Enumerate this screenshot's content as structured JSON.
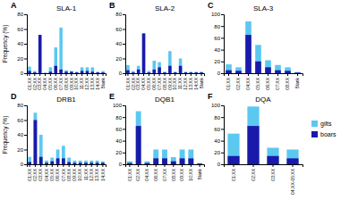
{
  "chart_data": [
    {
      "type": "bar",
      "title": "SLA-1",
      "annotations": [
        "A"
      ],
      "y_label": "Frequency (%)",
      "categories": [
        "01:XX",
        "02:XX",
        "03:XX",
        "04:XX",
        "05:XX",
        "06:XX",
        "07:XX",
        "08:XX",
        "09:XX",
        "10:XX",
        "11:XX",
        "12:XX",
        "13:XX",
        "14:XX",
        "Blank"
      ],
      "series": [
        {
          "name": "gilts",
          "color": "#5bc8f0",
          "values": [
            9,
            3,
            52,
            1,
            8,
            35,
            62,
            4,
            3,
            2,
            8,
            8,
            8,
            2,
            3
          ]
        },
        {
          "name": "boars",
          "color": "#1a1aaa",
          "values": [
            3,
            1,
            52,
            0,
            2,
            10,
            5,
            2,
            2,
            1,
            3,
            3,
            2,
            1,
            1
          ]
        }
      ],
      "stacked": false,
      "grid": false,
      "ylim": [
        0,
        80
      ],
      "yticks": [
        0,
        20,
        40,
        60,
        80
      ]
    },
    {
      "type": "bar",
      "title": "SLA-2",
      "annotations": [
        "B"
      ],
      "categories": [
        "01:XX",
        "02:XX",
        "03:XX",
        "04:XX",
        "05:XX",
        "06:XX",
        "07:XX",
        "08:XX",
        "09:XX",
        "10:XX",
        "11:XX",
        "12:XX",
        "13:XX",
        "14:XX",
        "Blank"
      ],
      "series": [
        {
          "name": "gilts",
          "color": "#5bc8f0",
          "values": [
            11,
            3,
            10,
            54,
            3,
            17,
            15,
            2,
            30,
            2,
            20,
            2,
            2,
            2,
            2
          ]
        },
        {
          "name": "boars",
          "color": "#1a1aaa",
          "values": [
            4,
            1,
            5,
            54,
            1,
            5,
            8,
            1,
            10,
            1,
            10,
            1,
            1,
            1,
            1
          ]
        }
      ],
      "stacked": false,
      "grid": false,
      "ylim": [
        0,
        80
      ],
      "yticks": [
        0,
        20,
        40,
        60,
        80
      ]
    },
    {
      "type": "bar",
      "title": "SLA-3",
      "annotations": [
        "C"
      ],
      "categories": [
        "01:XX",
        "02:XX",
        "04:XX",
        "05:XX",
        "06:XX",
        "07:XX",
        "08:XX",
        "Blank"
      ],
      "series": [
        {
          "name": "gilts",
          "color": "#5bc8f0",
          "values": [
            15,
            10,
            88,
            48,
            22,
            14,
            10,
            2
          ]
        },
        {
          "name": "boars",
          "color": "#1a1aaa",
          "values": [
            5,
            4,
            65,
            20,
            10,
            5,
            4,
            1
          ]
        }
      ],
      "stacked": false,
      "grid": false,
      "ylim": [
        0,
        100
      ],
      "yticks": [
        0,
        20,
        40,
        60,
        80,
        100
      ]
    },
    {
      "type": "bar",
      "title": "DRB1",
      "annotations": [
        "D"
      ],
      "y_label": "Frequency (%)",
      "categories": [
        "01:XX",
        "02:XX",
        "03:XX",
        "04:XX",
        "05:XX",
        "06:XX",
        "07:XX",
        "08:XX",
        "09:XX",
        "10:XX",
        "11:XX",
        "12:XX",
        "13:XX",
        "14:XX"
      ],
      "series": [
        {
          "name": "gilts",
          "color": "#5bc8f0",
          "values": [
            10,
            70,
            40,
            5,
            9,
            20,
            25,
            9,
            5,
            5,
            5,
            5,
            5,
            4
          ]
        },
        {
          "name": "boars",
          "color": "#1a1aaa",
          "values": [
            3,
            60,
            10,
            2,
            4,
            8,
            8,
            3,
            2,
            2,
            2,
            2,
            2,
            2
          ]
        }
      ],
      "stacked": false,
      "grid": false,
      "ylim": [
        0,
        80
      ],
      "yticks": [
        0,
        20,
        40,
        60,
        80
      ]
    },
    {
      "type": "bar",
      "title": "DQB1",
      "annotations": [
        "E"
      ],
      "categories": [
        "01:XX",
        "02:XX",
        "04:XX",
        "06:XX",
        "07:XX",
        "08:XX",
        "09:XX",
        "10:XX",
        "Blank"
      ],
      "series": [
        {
          "name": "gilts",
          "color": "#5bc8f0",
          "values": [
            5,
            90,
            5,
            25,
            25,
            12,
            25,
            25,
            2
          ]
        },
        {
          "name": "boars",
          "color": "#1a1aaa",
          "values": [
            2,
            65,
            2,
            10,
            10,
            5,
            10,
            10,
            1
          ]
        }
      ],
      "stacked": false,
      "grid": false,
      "ylim": [
        0,
        100
      ],
      "yticks": [
        0,
        20,
        40,
        60,
        80,
        100
      ]
    },
    {
      "type": "bar",
      "title": "DQA",
      "annotations": [
        "F"
      ],
      "categories": [
        "01:XX",
        "02:XX",
        "03:XX",
        "04:XX-05:XX"
      ],
      "series": [
        {
          "name": "gilts",
          "color": "#5bc8f0",
          "values": [
            52,
            98,
            28,
            25
          ]
        },
        {
          "name": "boars",
          "color": "#1a1aaa",
          "values": [
            14,
            65,
            14,
            10
          ]
        }
      ],
      "stacked": false,
      "grid": false,
      "legend": "right",
      "ylim": [
        0,
        100
      ],
      "yticks": [
        0,
        20,
        40,
        60,
        80,
        100
      ]
    }
  ]
}
